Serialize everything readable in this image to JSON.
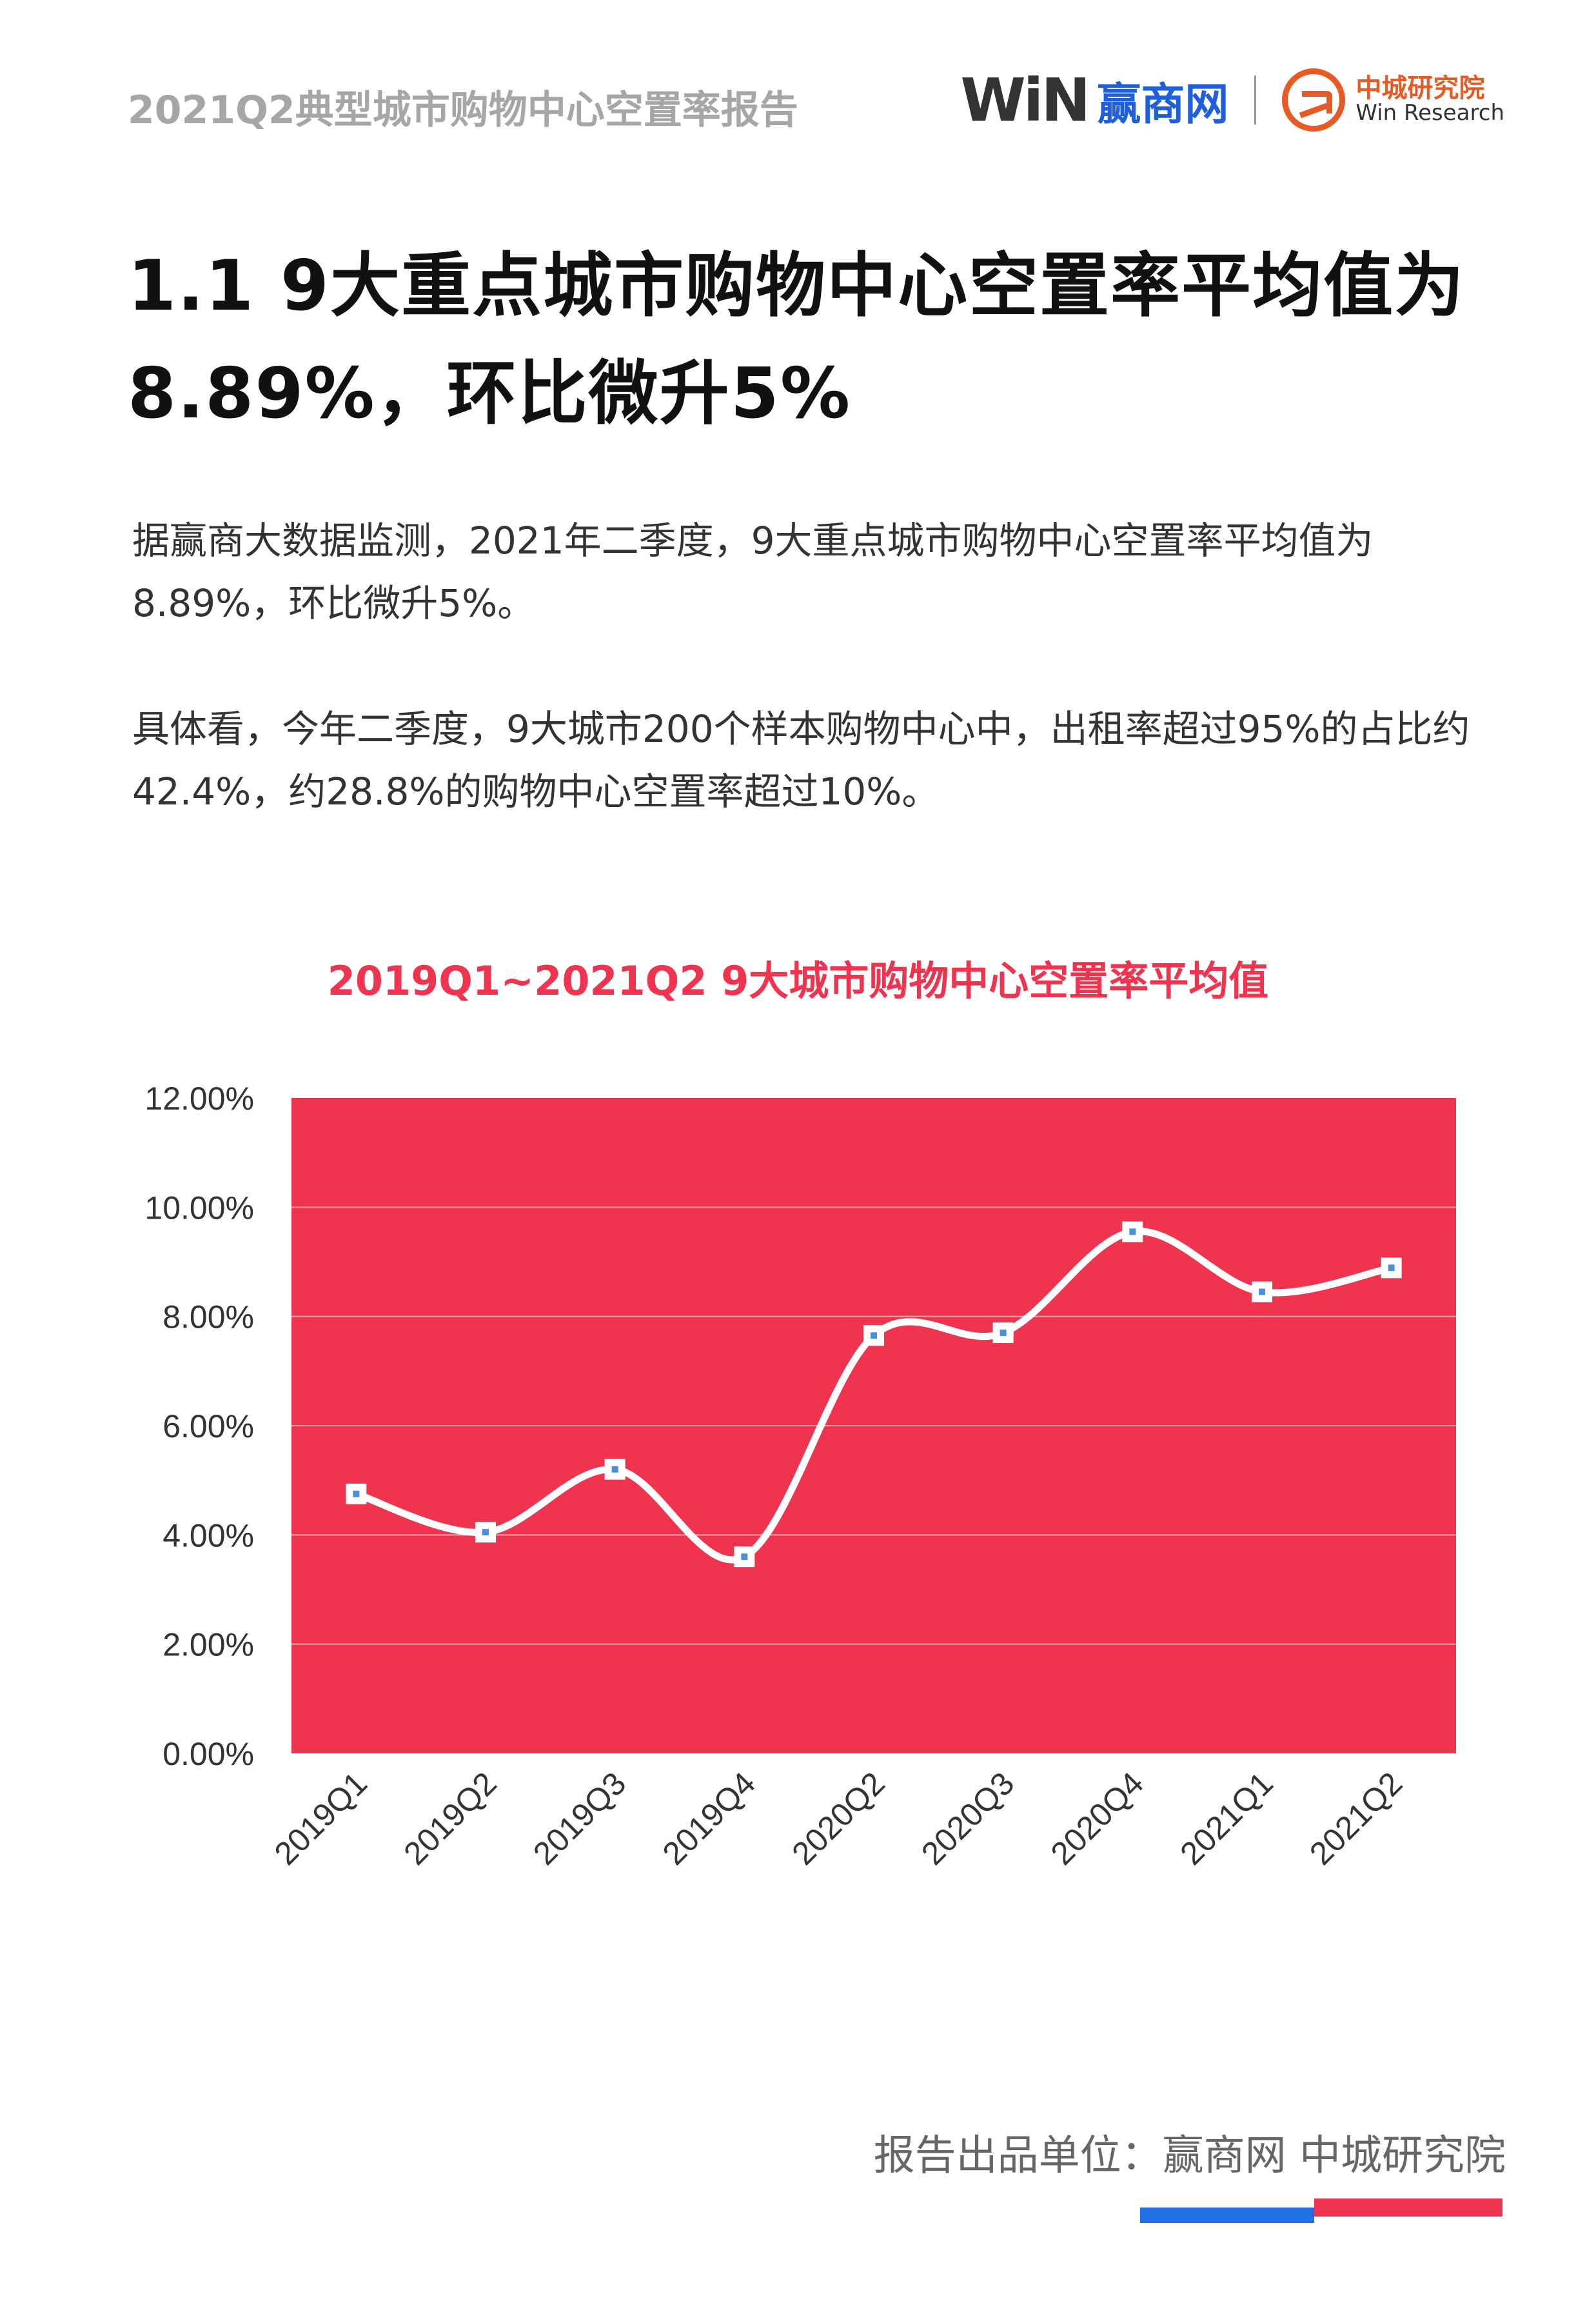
{
  "header": {
    "report_title": "2021Q2典型城市购物中心空置率报告",
    "logo_win_mark": "WiN",
    "logo_win_text": "赢商网",
    "logo_zc_cn": "中城研究院",
    "logo_zc_en": "Win Research"
  },
  "section": {
    "title": "1.1 9大重点城市购物中心空置率平均值为8.89%，环比微升5%"
  },
  "paragraphs": [
    "据赢商大数据监测，2021年二季度，9大重点城市购物中心空置率平均值为8.89%，环比微升5%。",
    "具体看，今年二季度，9大城市200个样本购物中心中，出租率超过95%的占比约42.4%，约28.8%的购物中心空置率超过10%。"
  ],
  "chart_title": "2019Q1~2021Q2   9大城市购物中心空置率平均值",
  "chart_data": {
    "type": "line",
    "title": "2019Q1~2021Q2   9大城市购物中心空置率平均值",
    "categories": [
      "2019Q1",
      "2019Q2",
      "2019Q3",
      "2019Q4",
      "2020Q2",
      "2020Q3",
      "2020Q4",
      "2021Q1",
      "2021Q2"
    ],
    "series": [
      {
        "values": [
          4.75,
          4.05,
          5.2,
          3.6,
          7.65,
          7.7,
          9.55,
          8.45,
          8.89
        ]
      }
    ],
    "y_ticks": [
      "0.00%",
      "2.00%",
      "4.00%",
      "6.00%",
      "8.00%",
      "10.00%",
      "12.00%"
    ],
    "ylim": [
      0,
      12
    ],
    "grid": true,
    "smooth": true,
    "colors": {
      "plot_bg": "#f0334e",
      "line": "#ffffff",
      "marker": "#4a90d9",
      "grid": "#f6a2ad"
    }
  },
  "footer": {
    "label": "报告出品单位：赢商网  中城研究院"
  }
}
